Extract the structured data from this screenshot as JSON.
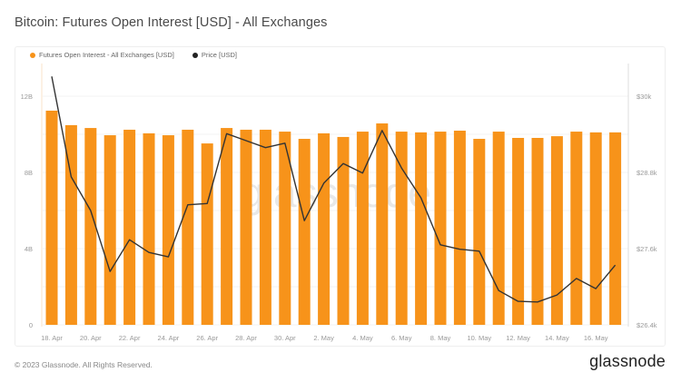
{
  "title": "Bitcoin: Futures Open Interest [USD] - All Exchanges",
  "legend": [
    {
      "label": "Futures Open Interest - All Exchanges [USD]",
      "color": "#f7931a"
    },
    {
      "label": "Price [USD]",
      "color": "#222222"
    }
  ],
  "footer": "© 2023 Glassnode. All Rights Reserved.",
  "brand": "glassnode",
  "watermark": "glassnode",
  "chart_data": {
    "type": "bar",
    "title": "Bitcoin: Futures Open Interest [USD] - All Exchanges",
    "xlabel": "",
    "ylabel": "",
    "legend_position": "top-left",
    "grid": true,
    "categories": [
      "18. Apr",
      "19. Apr",
      "20. Apr",
      "21. Apr",
      "22. Apr",
      "23. Apr",
      "24. Apr",
      "25. Apr",
      "26. Apr",
      "27. Apr",
      "28. Apr",
      "29. Apr",
      "30. Apr",
      "1. May",
      "2. May",
      "3. May",
      "4. May",
      "5. May",
      "6. May",
      "7. May",
      "8. May",
      "9. May",
      "10. May",
      "11. May",
      "12. May",
      "13. May",
      "14. May",
      "15. May",
      "16. May",
      "17. May"
    ],
    "x_tick_labels": [
      "18. Apr",
      "20. Apr",
      "22. Apr",
      "24. Apr",
      "26. Apr",
      "28. Apr",
      "30. Apr",
      "2. May",
      "4. May",
      "6. May",
      "8. May",
      "10. May",
      "12. May",
      "14. May",
      "16. May"
    ],
    "y_left": {
      "ticks": [
        "0",
        "4B",
        "8B",
        "12B"
      ],
      "ylim": [
        0,
        12
      ]
    },
    "y_right": {
      "ticks": [
        "$26.4k",
        "$27.6k",
        "$28.8k",
        "$30k"
      ],
      "ylim": [
        26.4,
        30
      ]
    },
    "series": [
      {
        "name": "Futures Open Interest - All Exchanges [USD]",
        "type": "bar",
        "axis": "left",
        "unit": "B USD",
        "color": "#f7931a",
        "values": [
          11.24,
          10.48,
          10.33,
          9.95,
          10.24,
          10.05,
          9.95,
          10.24,
          9.52,
          10.33,
          10.24,
          10.24,
          10.14,
          9.76,
          10.05,
          9.86,
          10.14,
          10.57,
          10.14,
          10.1,
          10.14,
          10.19,
          9.76,
          10.14,
          9.81,
          9.81,
          9.9,
          10.14,
          10.1,
          10.1
        ]
      },
      {
        "name": "Price [USD]",
        "type": "line",
        "axis": "right",
        "unit": "k USD",
        "color": "#222222",
        "values": [
          30.31,
          28.73,
          28.2,
          27.24,
          27.74,
          27.54,
          27.47,
          28.29,
          28.31,
          29.41,
          29.3,
          29.19,
          29.26,
          28.04,
          28.63,
          28.94,
          28.79,
          29.46,
          28.87,
          28.4,
          27.66,
          27.59,
          27.56,
          26.94,
          26.77,
          26.76,
          26.87,
          27.13,
          26.97,
          27.34
        ]
      }
    ]
  }
}
